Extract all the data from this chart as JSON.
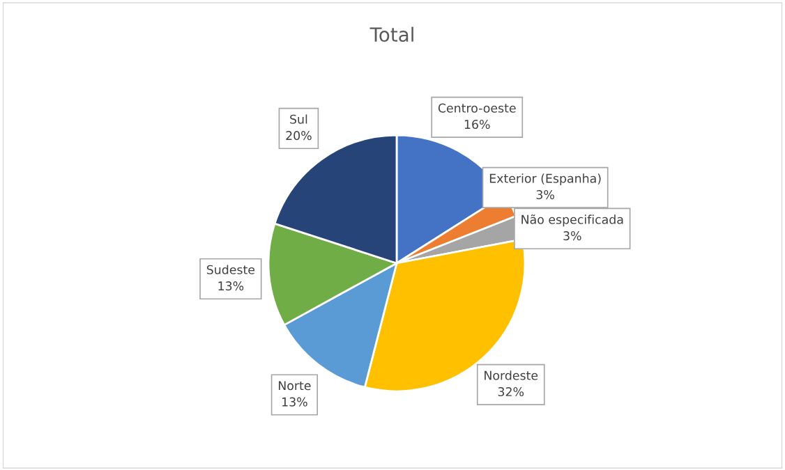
{
  "chart_data": {
    "type": "pie",
    "title": "Total",
    "categories": [
      "Centro-oeste",
      "Exterior (Espanha)",
      "Não especificada",
      "Nordeste",
      "Norte",
      "Sudeste",
      "Sul"
    ],
    "values": [
      16,
      3,
      3,
      32,
      13,
      13,
      20
    ],
    "value_labels": [
      "16%",
      "3%",
      "3%",
      "32%",
      "13%",
      "13%",
      "20%"
    ],
    "colors": [
      "#4472c4",
      "#ed7d31",
      "#a5a5a5",
      "#ffc000",
      "#5b9bd5",
      "#70ad47",
      "#264478"
    ],
    "legend": false
  }
}
